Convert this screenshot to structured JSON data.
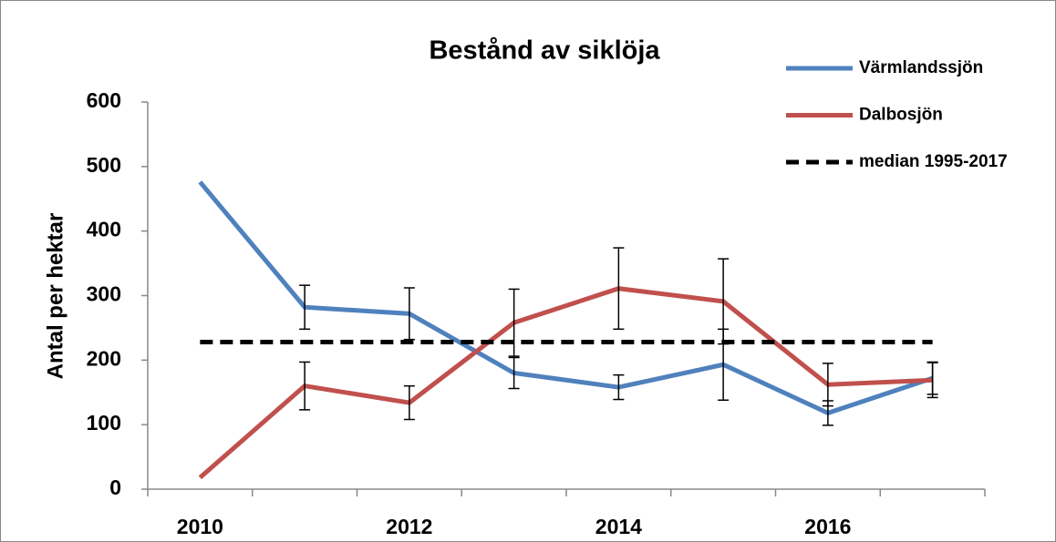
{
  "chart_data": {
    "type": "line",
    "title": "Bestånd av siklöja",
    "y_label": "Antal per hektar",
    "categories": [
      "2010",
      null,
      "2012",
      null,
      "2014",
      null,
      "2016",
      null
    ],
    "series": [
      {
        "name": "Värmlandssjön",
        "color": "#4f81bd",
        "values": [
          476,
          282,
          272,
          180,
          158,
          193,
          118,
          172
        ],
        "errors": [
          null,
          34,
          40,
          24,
          19,
          55,
          19,
          25
        ]
      },
      {
        "name": "Dalbosjön",
        "color": "#c0504d",
        "values": [
          18,
          160,
          134,
          258,
          311,
          291,
          162,
          169
        ],
        "errors": [
          null,
          37,
          26,
          52,
          63,
          66,
          33,
          27
        ]
      },
      {
        "name": "median 1995-2017",
        "color": "#000000",
        "dashed": true,
        "values": [
          228,
          228,
          228,
          228,
          228,
          228,
          228,
          228
        ]
      }
    ],
    "ylim": [
      0,
      600
    ],
    "yticks": [
      0,
      100,
      200,
      300,
      400,
      500,
      600
    ]
  }
}
